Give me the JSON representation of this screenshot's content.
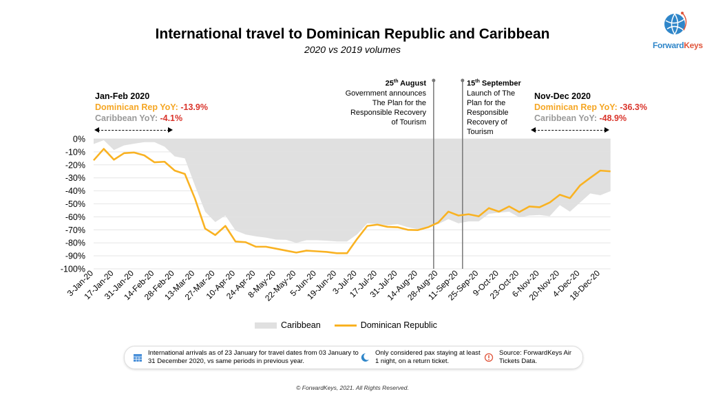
{
  "chart_data": {
    "type": "line",
    "title": "International travel to Dominican Republic and Caribbean",
    "subtitle": "2020 vs 2019 volumes",
    "x": [
      "3-Jan-20",
      "10-Jan-20",
      "17-Jan-20",
      "24-Jan-20",
      "31-Jan-20",
      "7-Feb-20",
      "14-Feb-20",
      "21-Feb-20",
      "28-Feb-20",
      "6-Mar-20",
      "13-Mar-20",
      "20-Mar-20",
      "27-Mar-20",
      "3-Apr-20",
      "10-Apr-20",
      "17-Apr-20",
      "24-Apr-20",
      "1-May-20",
      "8-May-20",
      "15-May-20",
      "22-May-20",
      "29-May-20",
      "5-Jun-20",
      "12-Jun-20",
      "19-Jun-20",
      "26-Jun-20",
      "3-Jul-20",
      "10-Jul-20",
      "17-Jul-20",
      "24-Jul-20",
      "31-Jul-20",
      "7-Aug-20",
      "14-Aug-20",
      "21-Aug-20",
      "28-Aug-20",
      "4-Sep-20",
      "11-Sep-20",
      "18-Sep-20",
      "25-Sep-20",
      "2-Oct-20",
      "9-Oct-20",
      "16-Oct-20",
      "23-Oct-20",
      "30-Oct-20",
      "6-Nov-20",
      "13-Nov-20",
      "20-Nov-20",
      "27-Nov-20",
      "4-Dec-20",
      "11-Dec-20",
      "18-Dec-20",
      "25-Dec-20"
    ],
    "x_tick_labels": [
      "3-Jan-20",
      "17-Jan-20",
      "31-Jan-20",
      "14-Feb-20",
      "28-Feb-20",
      "13-Mar-20",
      "27-Mar-20",
      "10-Apr-20",
      "24-Apr-20",
      "8-May-20",
      "22-May-20",
      "5-Jun-20",
      "19-Jun-20",
      "3-Jul-20",
      "17-Jul-20",
      "31-Jul-20",
      "14-Aug-20",
      "28-Aug-20",
      "11-Sep-20",
      "25-Sep-20",
      "9-Oct-20",
      "23-Oct-20",
      "6-Nov-20",
      "20-Nov-20",
      "4-Dec-20",
      "18-Dec-20"
    ],
    "y_tick_labels": [
      "0%",
      "-10%",
      "-20%",
      "-30%",
      "-40%",
      "-50%",
      "-60%",
      "-70%",
      "-80%",
      "-90%",
      "-100%"
    ],
    "ylim": [
      -100,
      0
    ],
    "grid": true,
    "legend_placement": "bottom",
    "series": [
      {
        "name": "Caribbean",
        "type": "area",
        "color": "#e0e0e0",
        "values": [
          -4,
          -1,
          -8.6,
          -5,
          -3.7,
          -2.5,
          -2.5,
          -6,
          -13.5,
          -15,
          -36,
          -56,
          -64,
          -59,
          -70.5,
          -73.6,
          -75,
          -76,
          -77.5,
          -77.7,
          -80,
          -78,
          -78,
          -78.4,
          -79,
          -79,
          -73.5,
          -65,
          -65.6,
          -66.5,
          -65.6,
          -68,
          -69.5,
          -67.5,
          -65.6,
          -61.8,
          -65,
          -63.5,
          -63.5,
          -57.7,
          -56.8,
          -56,
          -60.4,
          -59,
          -58.6,
          -59.5,
          -51,
          -56,
          -49,
          -42,
          -43.4,
          -40.2
        ]
      },
      {
        "name": "Dominican Republic",
        "type": "line",
        "color": "#f9b222",
        "values": [
          -16.5,
          -7.7,
          -16,
          -11,
          -10.5,
          -12.7,
          -18,
          -17.6,
          -24.4,
          -27,
          -46,
          -69,
          -74,
          -67,
          -79,
          -79.5,
          -83,
          -83,
          -84.5,
          -86,
          -87.5,
          -86,
          -86.5,
          -87,
          -88,
          -88,
          -77,
          -67,
          -66,
          -67.7,
          -68,
          -70,
          -70.2,
          -68,
          -64.4,
          -56,
          -59,
          -58,
          -59.6,
          -53.3,
          -56,
          -52,
          -56.3,
          -52,
          -52.6,
          -49,
          -43,
          -45.6,
          -35.8,
          -30,
          -24.4,
          -25
        ]
      }
    ],
    "annotations": {
      "jan_feb": {
        "heading": "Jan-Feb 2020",
        "dr_label": "Dominican Rep YoY: ",
        "dr_value": "-13.9%",
        "carib_label": "Caribbean YoY: ",
        "carib_value": "-4.1%"
      },
      "nov_dec": {
        "heading": "Nov-Dec 2020",
        "dr_label": "Dominican Rep YoY: ",
        "dr_value": "-36.3%",
        "carib_label": "Caribbean YoY: ",
        "carib_value": "-48.9%"
      },
      "event1": {
        "date_day": "25",
        "date_sup": "th",
        "date_month": " August",
        "lines": [
          "Government announces",
          "The Plan for the",
          "Responsible Recovery",
          "of Tourism"
        ]
      },
      "event2": {
        "date_day": "15",
        "date_sup": "th",
        "date_month": " September",
        "lines": [
          "Launch of The",
          "Plan for the",
          "Responsible",
          "Recovery of",
          "Tourism"
        ]
      }
    }
  },
  "logo": {
    "part1": "Forward",
    "part2": "Keys"
  },
  "footer": {
    "note1": "International arrivals as of 23 January for travel dates from 03 January to 31 December 2020, vs same periods in previous year.",
    "note2": "Only considered pax staying at least 1 night, on a return ticket.",
    "note3": "Source: ForwardKeys Air Tickets Data."
  },
  "copyright": "© ForwardKeys, 2021. All Rights Reserved.",
  "colors": {
    "dr": "#f9b222",
    "caribbean": "#e0e0e0",
    "negative": "#d9342b",
    "grey_text": "#9a9a9a"
  }
}
